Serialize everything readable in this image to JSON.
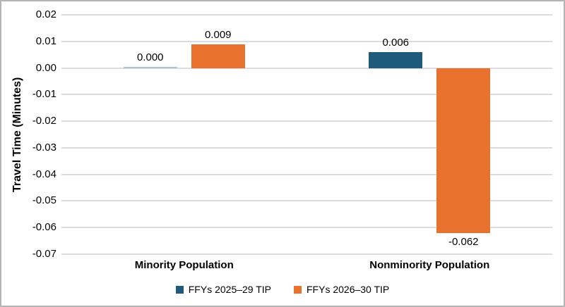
{
  "chart_data": {
    "type": "bar",
    "title": "",
    "ylabel": "Travel Time (Minutes)",
    "xlabel": "",
    "categories": [
      "Minority Population",
      "Nonminority Population"
    ],
    "series": [
      {
        "name": "FFYs 2025–29 TIP",
        "color": "#1E5A7C",
        "values": [
          0.0,
          0.006
        ],
        "value_labels": [
          "0.000",
          "0.006"
        ]
      },
      {
        "name": "FFYs 2026–30 TIP",
        "color": "#E8712D",
        "values": [
          0.009,
          -0.062
        ],
        "value_labels": [
          "0.009",
          "-0.062"
        ]
      }
    ],
    "ylim": [
      -0.07,
      0.02
    ],
    "ytick_labels": [
      "0.02",
      "0.01",
      "0.00",
      "-0.01",
      "-0.02",
      "-0.03",
      "-0.04",
      "-0.05",
      "-0.06",
      "-0.07"
    ],
    "ytick_values": [
      0.02,
      0.01,
      0.0,
      -0.01,
      -0.02,
      -0.03,
      -0.04,
      -0.05,
      -0.06,
      -0.07
    ],
    "grid": true,
    "legend_position": "bottom",
    "colors": {
      "gridline": "#DCDCDC",
      "near_zero_bar": "#A9C5DC",
      "text": "#000000",
      "frame_border": "#B5B5B5"
    }
  }
}
